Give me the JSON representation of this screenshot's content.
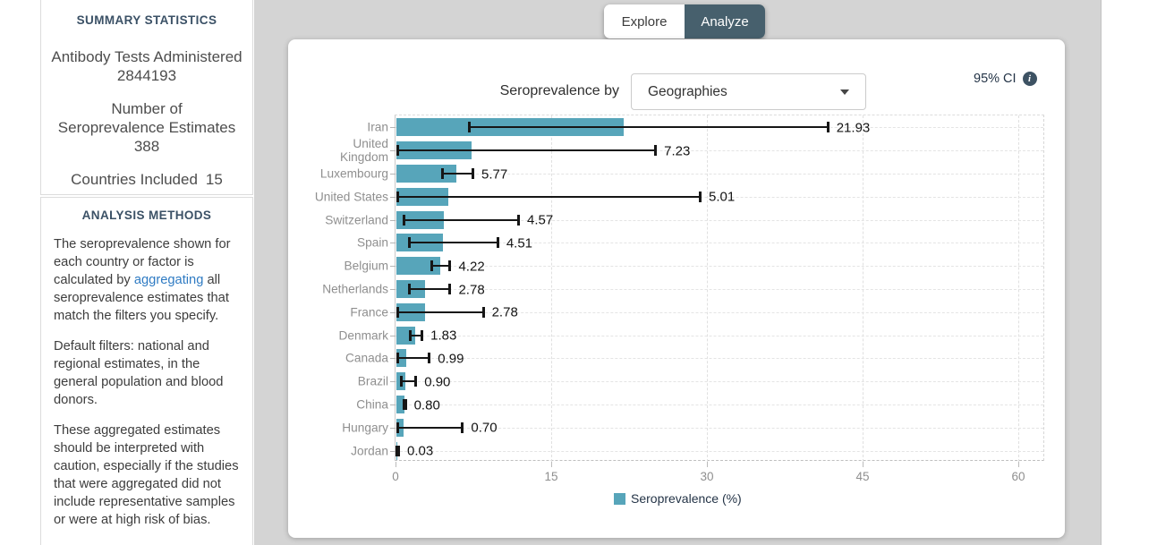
{
  "sidebar": {
    "summary": {
      "title": "SUMMARY STATISTICS",
      "stats": [
        {
          "label": "Antibody Tests Administered",
          "value": "2844193"
        },
        {
          "label": "Number of Seroprevalence Estimates",
          "value": "388"
        },
        {
          "label": "Countries Included",
          "value": "15"
        }
      ]
    },
    "analysis": {
      "title": "ANALYSIS METHODS",
      "p1_before": "The seroprevalence shown for each country or factor is calculated by ",
      "p1_link": "aggregating",
      "p1_after": " all seroprevalence estimates that match the filters you specify.",
      "p2": "Default filters: national and regional estimates, in the general population and blood donors.",
      "p3": "These aggregated estimates should be interpreted with caution, especially if the studies that were aggregated did not include representative samples or were at high risk of bias."
    }
  },
  "tabs": [
    {
      "label": "Explore",
      "active": false
    },
    {
      "label": "Analyze",
      "active": true
    }
  ],
  "controls": {
    "by_label": "Seroprevalence by",
    "dropdown_value": "Geographies",
    "ci_label": "95% CI",
    "info_icon_glyph": "i"
  },
  "chart_data": {
    "type": "bar",
    "orientation": "horizontal",
    "title": "Seroprevalence by Geographies",
    "legend": [
      {
        "label": "Seroprevalence (%)",
        "color": "#57a5ba"
      }
    ],
    "xlim": [
      0,
      62.6
    ],
    "xticks": [
      0,
      15,
      30,
      45,
      60
    ],
    "grid": "dashed",
    "categories": [
      "Iran",
      "United\nKingdom",
      "Luxembourg",
      "United States",
      "Switzerland",
      "Spain",
      "Belgium",
      "Netherlands",
      "France",
      "Denmark",
      "Canada",
      "Brazil",
      "China",
      "Hungary",
      "Jordan"
    ],
    "values": [
      21.93,
      7.23,
      5.77,
      5.01,
      4.57,
      4.51,
      4.22,
      2.78,
      2.78,
      1.83,
      0.99,
      0.9,
      0.8,
      0.7,
      0.03
    ],
    "value_labels": [
      "21.93",
      "7.23",
      "5.77",
      "5.01",
      "4.57",
      "4.51",
      "4.22",
      "2.78",
      "2.78",
      "1.83",
      "0.99",
      "0.90",
      "0.80",
      "0.70",
      "0.03"
    ],
    "ci_low": [
      7.0,
      0.1,
      4.4,
      0.1,
      0.7,
      1.2,
      3.4,
      1.2,
      0.1,
      1.3,
      0.1,
      0.4,
      0.7,
      0.1,
      0.0
    ],
    "ci_high": [
      41.7,
      25.1,
      7.5,
      29.4,
      11.9,
      9.9,
      5.3,
      5.3,
      8.5,
      2.6,
      3.3,
      2.0,
      1.0,
      6.5,
      0.35
    ]
  },
  "colors": {
    "bar": "#57a5ba",
    "tab_active_bg": "#47606d",
    "page_bg": "#d4d4d4",
    "heading": "#3b5166",
    "link": "#2f7bc3"
  }
}
